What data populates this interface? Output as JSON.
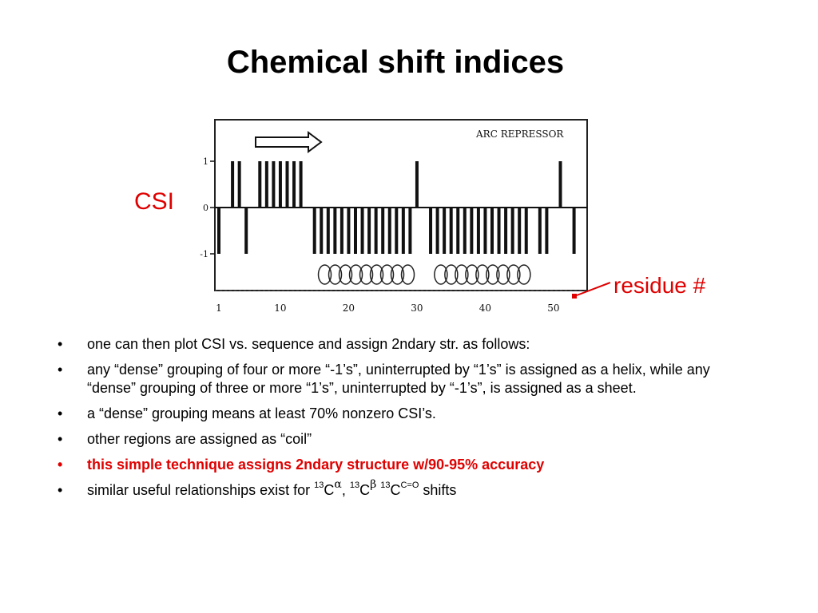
{
  "slide": {
    "title": "Chemical shift indices"
  },
  "figure": {
    "caption": "ARC REPRESSOR",
    "y_ticks": [
      "1",
      "0",
      "-1"
    ],
    "x_ticks": [
      "1",
      "10",
      "20",
      "30",
      "40",
      "50"
    ]
  },
  "chart_data": {
    "type": "bar",
    "title": "ARC REPRESSOR",
    "xlabel": "",
    "ylabel": "",
    "ylim": [
      -1,
      1
    ],
    "x_ticks": [
      1,
      10,
      20,
      30,
      40,
      50
    ],
    "y_ticks": [
      1,
      0,
      -1
    ],
    "series": [
      {
        "x": [
          1,
          2,
          3,
          4,
          5,
          6,
          7,
          8,
          9,
          10,
          11,
          12,
          13,
          14,
          15,
          16,
          17,
          18,
          19,
          20,
          21,
          22,
          23,
          24,
          25,
          26,
          27,
          28,
          29,
          30,
          31,
          32,
          33,
          34,
          35,
          36,
          37,
          38,
          39,
          40,
          41,
          42,
          43,
          44,
          45,
          46,
          47,
          48,
          49,
          50,
          51,
          52,
          53
        ],
        "values": [
          -1,
          0,
          1,
          1,
          -1,
          0,
          1,
          1,
          1,
          1,
          1,
          1,
          1,
          0,
          -1,
          -1,
          -1,
          -1,
          -1,
          -1,
          -1,
          -1,
          -1,
          -1,
          -1,
          -1,
          -1,
          -1,
          -1,
          1,
          0,
          -1,
          -1,
          -1,
          -1,
          -1,
          -1,
          -1,
          -1,
          -1,
          -1,
          -1,
          -1,
          -1,
          -1,
          -1,
          0,
          -1,
          -1,
          0,
          1,
          0,
          -1
        ]
      }
    ],
    "grid": false
  },
  "annotations": {
    "csi_label": "CSI",
    "residue_label": "residue #"
  },
  "bullets": [
    {
      "text": "one can then plot CSI vs. sequence and assign 2ndary str. as follows:"
    },
    {
      "text": "any “dense” grouping of four or more “-1’s”, uninterrupted by “1’s” is assigned as a helix, while any “dense” grouping of three or more “1’s”, uninterrupted by “-1’s”, is assigned as a sheet."
    },
    {
      "text": "a “dense” grouping means at least 70% nonzero CSI’s."
    },
    {
      "text": "other regions are assigned as “coil”"
    },
    {
      "text": "this simple technique assigns 2ndary structure w/90-95% accuracy"
    }
  ],
  "last_bullet": {
    "prefix": "similar useful relationships exist for ",
    "iso1": "13",
    "atom1": "C",
    "sub1": "α",
    "sep1": ", ",
    "iso2": "13",
    "atom2": "C",
    "sub2": "β",
    "sep2": " ",
    "iso3": "13",
    "atom3": "C",
    "sub3": "C=O",
    "suffix": " shifts"
  },
  "bullet_char": "•",
  "colors": {
    "accent": "#e00000",
    "text": "#000000"
  }
}
